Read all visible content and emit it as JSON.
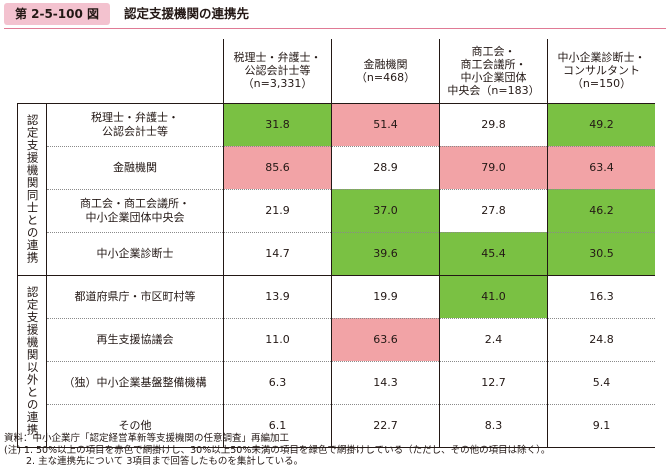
{
  "figure": {
    "label": "第 2-5-100 図",
    "title": "認定支援機関の連携先"
  },
  "columns": [
    "税理士・弁護士・\n公認会計士等\n（n=3,331）",
    "金融機関\n（n=468）",
    "商工会・\n商工会議所・\n中小企業団体\n中央会（n=183）",
    "中小企業診断士・\nコンサルタント\n（n=150）"
  ],
  "groups": [
    {
      "label": "認定支援機関同士との連携",
      "rows": [
        {
          "label": "税理士・弁護士・\n公認会計士等",
          "values": [
            "31.8",
            "51.4",
            "29.8",
            "49.2"
          ],
          "colors": [
            "green",
            "pink",
            "",
            "green"
          ]
        },
        {
          "label": "金融機関",
          "values": [
            "85.6",
            "28.9",
            "79.0",
            "63.4"
          ],
          "colors": [
            "pink",
            "",
            "pink",
            "pink"
          ]
        },
        {
          "label": "商工会・商工会議所・\n中小企業団体中央会",
          "values": [
            "21.9",
            "37.0",
            "27.8",
            "46.2"
          ],
          "colors": [
            "",
            "green",
            "",
            "green"
          ]
        },
        {
          "label": "中小企業診断士",
          "values": [
            "14.7",
            "39.6",
            "45.4",
            "30.5"
          ],
          "colors": [
            "",
            "green",
            "green",
            "green"
          ]
        }
      ]
    },
    {
      "label": "認定支援機関以外との連携",
      "rows": [
        {
          "label": "都道府県庁・市区町村等",
          "values": [
            "13.9",
            "19.9",
            "41.0",
            "16.3"
          ],
          "colors": [
            "",
            "",
            "green",
            ""
          ]
        },
        {
          "label": "再生支援協議会",
          "values": [
            "11.0",
            "63.6",
            "2.4",
            "24.8"
          ],
          "colors": [
            "",
            "pink",
            "",
            ""
          ]
        },
        {
          "label": "（独）中小企業基盤整備機構",
          "values": [
            "6.3",
            "14.3",
            "12.7",
            "5.4"
          ],
          "colors": [
            "",
            "",
            "",
            ""
          ]
        },
        {
          "label": "その他",
          "values": [
            "6.1",
            "22.7",
            "8.3",
            "9.1"
          ],
          "colors": [
            "",
            "",
            "",
            ""
          ]
        }
      ]
    }
  ],
  "colors": {
    "green": "#7ac143",
    "pink": "#f2a3a6",
    "label_bg": "#f3c2cf"
  },
  "notes": [
    "資料：中小企業庁「認定経営革新等支援機関の任意調査」再編加工",
    "(注) 1. 50%以上の項目を赤色で網掛けし、30%以上50%未満の項目を緑色で網掛けしている（ただし、その他の項目は除く）。",
    "2. 主な連携先について 3項目まで回答したものを集計している。"
  ]
}
